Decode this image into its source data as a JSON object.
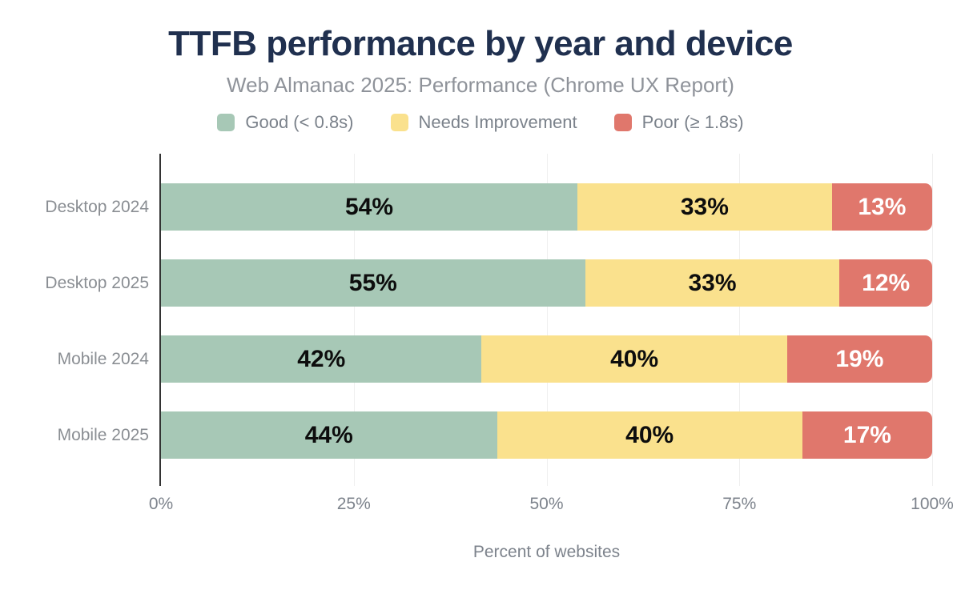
{
  "title": "TTFB performance by year and device",
  "subtitle": "Web Almanac 2025: Performance (Chrome UX Report)",
  "colors": {
    "title_text": "#20304f",
    "muted_text": "#8a8e93",
    "axis_line": "#333333",
    "gridline": "#efefef",
    "good": "#a7c8b6",
    "needs_improvement": "#fae18d",
    "poor": "#e0776c",
    "label_on_light_segment": "#0d0d0d",
    "label_on_poor_segment": "#ffffff"
  },
  "chart_data": {
    "type": "bar",
    "orientation": "horizontal",
    "stacked": true,
    "title": "TTFB performance by year and device",
    "subtitle": "Web Almanac 2025: Performance (Chrome UX Report)",
    "categories": [
      "Desktop 2024",
      "Desktop 2025",
      "Mobile 2024",
      "Mobile 2025"
    ],
    "series": [
      {
        "name": "Good (< 0.8s)",
        "color": "#a7c8b6",
        "value_label_color": "#0d0d0d",
        "values": [
          54,
          55,
          42,
          44
        ]
      },
      {
        "name": "Needs Improvement",
        "color": "#fae18d",
        "value_label_color": "#0d0d0d",
        "values": [
          33,
          33,
          40,
          40
        ]
      },
      {
        "name": "Poor (≥ 1.8s)",
        "color": "#e0776c",
        "value_label_color": "#ffffff",
        "values": [
          13,
          12,
          19,
          17
        ]
      }
    ],
    "value_suffix": "%",
    "xlabel": "Percent of websites",
    "x_ticks": [
      "0%",
      "25%",
      "50%",
      "75%",
      "100%"
    ],
    "xlim": [
      0,
      100
    ],
    "grid": "vertical-only",
    "legend_position": "top"
  }
}
